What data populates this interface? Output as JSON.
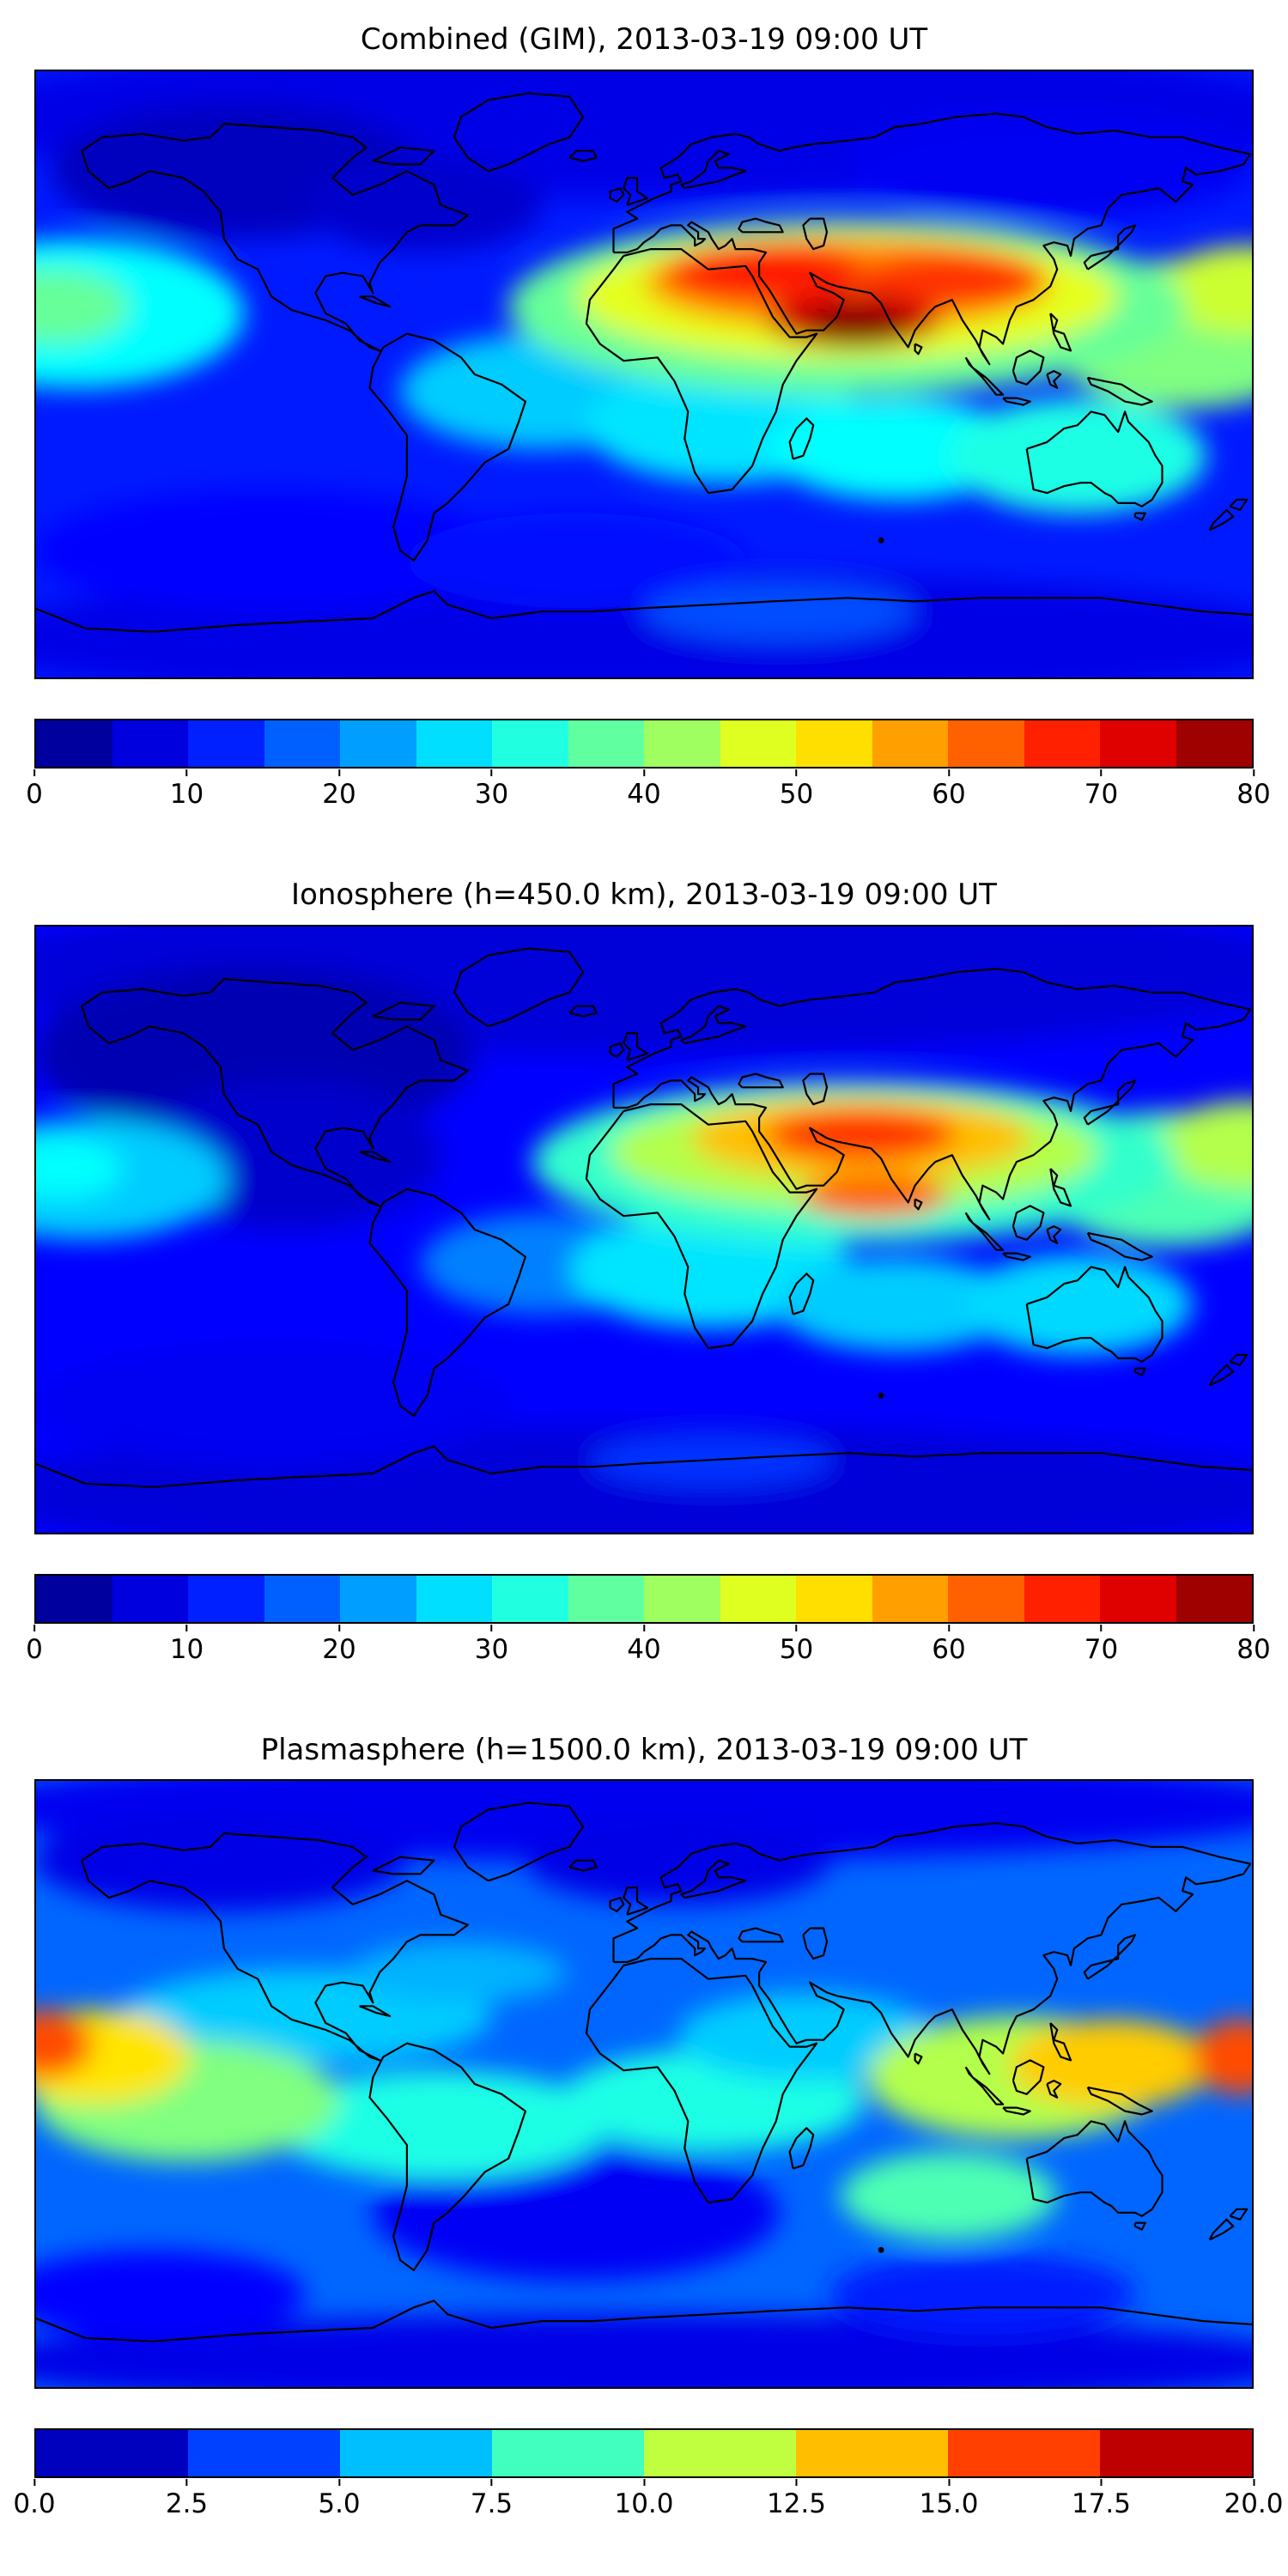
{
  "page": {
    "background": "#ffffff",
    "figure_kind": "three stacked global TEC maps with jet colorbars"
  },
  "chart_data": [
    {
      "type": "heatmap",
      "title": "Combined (GIM), 2013-03-19 09:00 UT",
      "timestamp": "2013-03-19 09:00 UT",
      "projection": "equirectangular",
      "lon_range": [
        -180,
        180
      ],
      "lat_range": [
        -90,
        90
      ],
      "colormap": "jet",
      "vmin": 0,
      "vmax": 80,
      "colorbar_segments": 16,
      "colorbar_tick_labels": [
        "0",
        "10",
        "20",
        "30",
        "40",
        "50",
        "60",
        "70",
        "80"
      ],
      "base_value": 12,
      "peak": {
        "value": 80,
        "lon": 63,
        "lat": 14
      },
      "field_blobs": [
        {
          "lon": 0,
          "lat": 76,
          "rlon": 200,
          "rlat": 24,
          "value": 8
        },
        {
          "lon": -120,
          "lat": 60,
          "rlon": 55,
          "rlat": 20,
          "value": 5
        },
        {
          "lon": -65,
          "lat": 50,
          "rlon": 35,
          "rlat": 14,
          "value": 6
        },
        {
          "lon": 120,
          "lat": 62,
          "rlon": 60,
          "rlat": 16,
          "value": 9
        },
        {
          "lon": 0,
          "lat": -78,
          "rlon": 200,
          "rlat": 20,
          "value": 8
        },
        {
          "lon": -110,
          "lat": -52,
          "rlon": 70,
          "rlat": 18,
          "value": 10
        },
        {
          "lon": -20,
          "lat": -55,
          "rlon": 50,
          "rlat": 14,
          "value": 11
        },
        {
          "lon": -168,
          "lat": 18,
          "rlon": 50,
          "rlat": 22,
          "value": 30
        },
        {
          "lon": -174,
          "lat": 20,
          "rlon": 22,
          "rlat": 11,
          "value": 38
        },
        {
          "lon": -30,
          "lat": -5,
          "rlon": 42,
          "rlat": 17,
          "value": 26
        },
        {
          "lon": 25,
          "lat": -15,
          "rlon": 42,
          "rlat": 17,
          "value": 28
        },
        {
          "lon": 75,
          "lat": -22,
          "rlon": 38,
          "rlat": 15,
          "value": 30
        },
        {
          "lon": 128,
          "lat": -24,
          "rlon": 38,
          "rlat": 17,
          "value": 32
        },
        {
          "lon": 160,
          "lat": 12,
          "rlon": 42,
          "rlat": 22,
          "value": 40
        },
        {
          "lon": 178,
          "lat": 25,
          "rlon": 26,
          "rlat": 13,
          "value": 46
        },
        {
          "lon": 60,
          "lat": 20,
          "rlon": 100,
          "rlat": 26,
          "value": 38
        },
        {
          "lon": 60,
          "lat": 23,
          "rlon": 80,
          "rlat": 19,
          "value": 48
        },
        {
          "lon": 60,
          "lat": 27,
          "rlon": 60,
          "rlat": 14,
          "value": 58
        },
        {
          "lon": 36,
          "lat": 30,
          "rlon": 30,
          "rlat": 9,
          "value": 68
        },
        {
          "lon": 90,
          "lat": 28,
          "rlon": 28,
          "rlat": 8,
          "value": 66
        },
        {
          "lon": 62,
          "lat": 16,
          "rlon": 26,
          "rlat": 8,
          "value": 74
        },
        {
          "lon": 63,
          "lat": 14,
          "rlon": 15,
          "rlat": 6,
          "value": 80
        },
        {
          "lon": 40,
          "lat": -70,
          "rlon": 40,
          "rlat": 9,
          "value": 16
        }
      ]
    },
    {
      "type": "heatmap",
      "title": "Ionosphere (h=450.0 km), 2013-03-19 09:00 UT",
      "timestamp": "2013-03-19 09:00 UT",
      "projection": "equirectangular",
      "lon_range": [
        -180,
        180
      ],
      "lat_range": [
        -90,
        90
      ],
      "colormap": "jet",
      "vmin": 0,
      "vmax": 80,
      "colorbar_segments": 16,
      "colorbar_tick_labels": [
        "0",
        "10",
        "20",
        "30",
        "40",
        "50",
        "60",
        "70",
        "80"
      ],
      "base_value": 10,
      "peak": {
        "value": 66,
        "lon": 64,
        "lat": 28
      },
      "field_blobs": [
        {
          "lon": 0,
          "lat": 76,
          "rlon": 200,
          "rlat": 24,
          "value": 7
        },
        {
          "lon": -115,
          "lat": 52,
          "rlon": 65,
          "rlat": 26,
          "value": 4
        },
        {
          "lon": -105,
          "lat": 22,
          "rlon": 45,
          "rlat": 22,
          "value": 6
        },
        {
          "lon": 0,
          "lat": -78,
          "rlon": 200,
          "rlat": 20,
          "value": 7
        },
        {
          "lon": -110,
          "lat": -52,
          "rlon": 70,
          "rlat": 18,
          "value": 9
        },
        {
          "lon": -165,
          "lat": 15,
          "rlon": 42,
          "rlat": 18,
          "value": 26
        },
        {
          "lon": -172,
          "lat": 18,
          "rlon": 18,
          "rlat": 9,
          "value": 30
        },
        {
          "lon": -30,
          "lat": -10,
          "rlon": 36,
          "rlat": 15,
          "value": 20
        },
        {
          "lon": 20,
          "lat": -12,
          "rlon": 42,
          "rlat": 17,
          "value": 28
        },
        {
          "lon": 75,
          "lat": -22,
          "rlon": 36,
          "rlat": 14,
          "value": 26
        },
        {
          "lon": 128,
          "lat": -22,
          "rlon": 34,
          "rlat": 15,
          "value": 27
        },
        {
          "lon": 155,
          "lat": 15,
          "rlon": 40,
          "rlat": 20,
          "value": 36
        },
        {
          "lon": 178,
          "lat": 25,
          "rlon": 26,
          "rlat": 13,
          "value": 44
        },
        {
          "lon": 62,
          "lat": 20,
          "rlon": 95,
          "rlat": 24,
          "value": 34
        },
        {
          "lon": 62,
          "lat": 23,
          "rlon": 72,
          "rlat": 17,
          "value": 44
        },
        {
          "lon": 64,
          "lat": 27,
          "rlon": 50,
          "rlat": 12,
          "value": 55
        },
        {
          "lon": 64,
          "lat": 28,
          "rlon": 28,
          "rlat": 7.5,
          "value": 66
        },
        {
          "lon": 68,
          "lat": 10,
          "rlon": 22,
          "rlat": 6.5,
          "value": 62
        },
        {
          "lon": 20,
          "lat": -68,
          "rlon": 36,
          "rlat": 8,
          "value": 14
        }
      ]
    },
    {
      "type": "heatmap",
      "title": "Plasmasphere (h=1500.0 km), 2013-03-19 09:00 UT",
      "timestamp": "2013-03-19 09:00 UT",
      "projection": "equirectangular",
      "lon_range": [
        -180,
        180
      ],
      "lat_range": [
        -90,
        90
      ],
      "colormap": "jet",
      "vmin": 0,
      "vmax": 20,
      "colorbar_segments": 8,
      "colorbar_tick_labels": [
        "0.0",
        "2.5",
        "5.0",
        "7.5",
        "10.0",
        "12.5",
        "15.0",
        "17.5",
        "20.0"
      ],
      "base_value": 4.5,
      "peak": {
        "value": 16,
        "lon": -177,
        "lat": 12
      },
      "field_blobs": [
        {
          "lon": 0,
          "lat": 82,
          "rlon": 200,
          "rlat": 16,
          "value": 2.2
        },
        {
          "lon": -125,
          "lat": 66,
          "rlon": 55,
          "rlat": 15,
          "value": 2.0
        },
        {
          "lon": 10,
          "lat": 66,
          "rlon": 45,
          "rlat": 13,
          "value": 2.0
        },
        {
          "lon": 0,
          "lat": -82,
          "rlon": 200,
          "rlat": 14,
          "value": 2.0
        },
        {
          "lon": -20,
          "lat": -38,
          "rlon": 60,
          "rlat": 20,
          "value": 2.3
        },
        {
          "lon": -145,
          "lat": -62,
          "rlon": 45,
          "rlat": 13,
          "value": 2.6
        },
        {
          "lon": 100,
          "lat": -62,
          "rlon": 45,
          "rlat": 12,
          "value": 3.0
        },
        {
          "lon": -100,
          "lat": 20,
          "rlon": 55,
          "rlat": 14,
          "value": 6.5
        },
        {
          "lon": -60,
          "lat": -12,
          "rlon": 50,
          "rlat": 16,
          "value": 8.0
        },
        {
          "lon": -135,
          "lat": -5,
          "rlon": 45,
          "rlat": 18,
          "value": 10.0
        },
        {
          "lon": -162,
          "lat": 8,
          "rlon": 28,
          "rlat": 14,
          "value": 13.0
        },
        {
          "lon": -177,
          "lat": 12,
          "rlon": 14,
          "rlat": 10,
          "value": 16.0
        },
        {
          "lon": 20,
          "lat": -5,
          "rlon": 45,
          "rlat": 15,
          "value": 8.0
        },
        {
          "lon": 48,
          "lat": 14,
          "rlon": 38,
          "rlat": 13,
          "value": 6.5
        },
        {
          "lon": -55,
          "lat": 33,
          "rlon": 32,
          "rlat": 9,
          "value": 6.0
        },
        {
          "lon": 110,
          "lat": 2,
          "rlon": 44,
          "rlat": 18,
          "value": 11.0
        },
        {
          "lon": 138,
          "lat": 6,
          "rlon": 30,
          "rlat": 13,
          "value": 13.5
        },
        {
          "lon": 176,
          "lat": 8,
          "rlon": 14,
          "rlat": 11,
          "value": 16.0
        },
        {
          "lon": 90,
          "lat": -33,
          "rlon": 32,
          "rlat": 13,
          "value": 9.0
        }
      ]
    }
  ]
}
